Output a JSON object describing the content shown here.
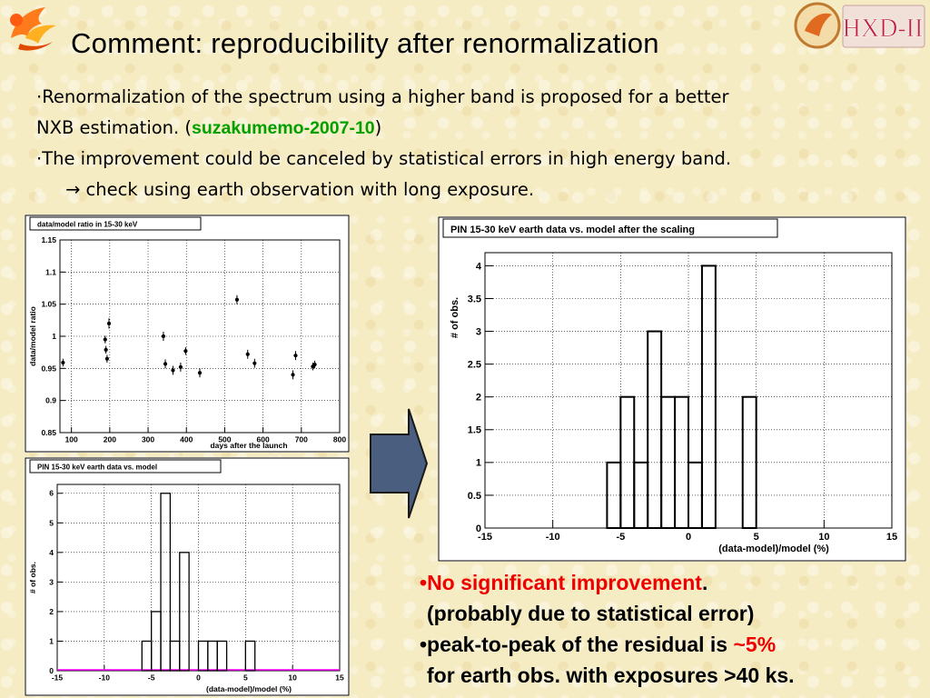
{
  "title": "Comment:  reproducibility after renormalization",
  "logos": {
    "left": "phoenix-bird-icon",
    "right": "HXD-II"
  },
  "bullets": {
    "b1_line1": "·Renormalization of the spectrum using a higher band is proposed for a better",
    "b1_line2_pre": "NXB estimation. (",
    "b1_memo": "suzakumemo-2007-10",
    "b1_line2_post": ")",
    "b2_line1": "·The improvement could be canceled by statistical errors in high energy band.",
    "b2_arrow": "→",
    "b2_line2": " check using earth observation with long exposure."
  },
  "charts": [
    {
      "type": "scatter",
      "title": "data/model ratio in 15-30 keV",
      "xlabel": "days after the launch",
      "ylabel": "data/model ratio",
      "xlim": [
        70,
        800
      ],
      "ylim": [
        0.85,
        1.15
      ],
      "xticks": [
        100,
        200,
        300,
        400,
        500,
        600,
        700,
        800
      ],
      "yticks": [
        0.85,
        0.9,
        0.95,
        1,
        1.05,
        1.1,
        1.15
      ],
      "ytick_labels": [
        "0.85",
        "0.9",
        "0.95",
        "1",
        "1.05",
        "1.1",
        "1.15"
      ],
      "points": [
        {
          "x": 78,
          "y": 0.959,
          "err": 0.006
        },
        {
          "x": 188,
          "y": 0.995,
          "err": 0.006
        },
        {
          "x": 190,
          "y": 0.979,
          "err": 0.006
        },
        {
          "x": 193,
          "y": 0.965,
          "err": 0.006
        },
        {
          "x": 198,
          "y": 1.02,
          "err": 0.008
        },
        {
          "x": 340,
          "y": 1.0,
          "err": 0.007
        },
        {
          "x": 345,
          "y": 0.957,
          "err": 0.007
        },
        {
          "x": 365,
          "y": 0.947,
          "err": 0.007
        },
        {
          "x": 385,
          "y": 0.952,
          "err": 0.007
        },
        {
          "x": 398,
          "y": 0.977,
          "err": 0.006
        },
        {
          "x": 435,
          "y": 0.943,
          "err": 0.007
        },
        {
          "x": 532,
          "y": 1.057,
          "err": 0.007
        },
        {
          "x": 560,
          "y": 0.972,
          "err": 0.007
        },
        {
          "x": 578,
          "y": 0.958,
          "err": 0.007
        },
        {
          "x": 678,
          "y": 0.94,
          "err": 0.007
        },
        {
          "x": 685,
          "y": 0.97,
          "err": 0.007
        },
        {
          "x": 730,
          "y": 0.953,
          "err": 0.006
        },
        {
          "x": 735,
          "y": 0.956,
          "err": 0.006
        }
      ]
    },
    {
      "type": "bar",
      "title": "PIN 15-30 keV earth data vs. model",
      "xlabel": "(data-model)/model (%)",
      "ylabel": "# of obs.",
      "xlim": [
        -15,
        15
      ],
      "ylim": [
        0,
        6.3
      ],
      "xticks": [
        -15,
        -10,
        -5,
        0,
        5,
        10,
        15
      ],
      "yticks": [
        0,
        1,
        2,
        3,
        4,
        5,
        6
      ],
      "ytick_labels": [
        "0",
        "1",
        "2",
        "3",
        "4",
        "5",
        "6"
      ],
      "bin_edges": [
        -15,
        -14,
        -13,
        -12,
        -11,
        -10,
        -9,
        -8,
        -7,
        -6,
        -5,
        -4,
        -3,
        -2,
        -1,
        0,
        1,
        2,
        3,
        4,
        5,
        6,
        7,
        8,
        9,
        10,
        11,
        12,
        13,
        14,
        15
      ],
      "values": [
        0,
        0,
        0,
        0,
        0,
        0,
        0,
        0,
        0,
        1,
        2,
        6,
        1,
        4,
        0,
        1,
        1,
        1,
        0,
        0,
        1,
        0,
        0,
        0,
        0,
        0,
        0,
        0,
        0,
        0
      ]
    },
    {
      "type": "bar",
      "title": "PIN 15-30 keV earth data vs. model after the scaling",
      "xlabel": "(data-model)/model (%)",
      "ylabel": "# of obs.",
      "xlim": [
        -15,
        15
      ],
      "ylim": [
        0,
        4.2
      ],
      "xticks": [
        -15,
        -10,
        -5,
        0,
        5,
        10,
        15
      ],
      "yticks": [
        0,
        0.5,
        1,
        1.5,
        2,
        2.5,
        3,
        3.5,
        4
      ],
      "ytick_labels": [
        "0",
        "0.5",
        "1",
        "1.5",
        "2",
        "2.5",
        "3",
        "3.5",
        "4"
      ],
      "bin_edges": [
        -15,
        -14,
        -13,
        -12,
        -11,
        -10,
        -9,
        -8,
        -7,
        -6,
        -5,
        -4,
        -3,
        -2,
        -1,
        0,
        1,
        2,
        3,
        4,
        5,
        6,
        7,
        8,
        9,
        10,
        11,
        12,
        13,
        14,
        15
      ],
      "values": [
        0,
        0,
        0,
        0,
        0,
        0,
        0,
        0,
        0,
        1,
        2,
        1,
        3,
        2,
        2,
        1,
        4,
        0,
        0,
        2,
        0,
        0,
        0,
        0,
        0,
        0,
        0,
        0,
        0,
        0
      ]
    }
  ],
  "conclusions": {
    "c1_bullet": "•",
    "c1_red": "No significant improvement",
    "c1_dot": ".",
    "c2": "(probably due to statistical error)",
    "c3_pre": "•peak-to-peak of the residual is ",
    "c3_tilde": "~",
    "c3_red": "5%",
    "c4": "for earth obs. with exposures >40 ks."
  },
  "colors": {
    "memo_green": "#00a000",
    "red": "#ee0000",
    "arrow_fill": "#4a5f80",
    "baseline_magenta": "#ff00ff"
  }
}
